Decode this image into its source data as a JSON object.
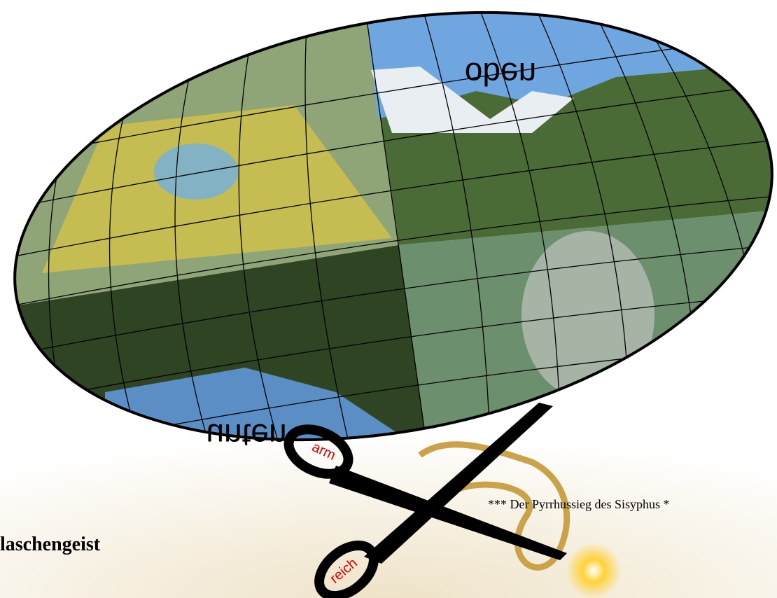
{
  "globe": {
    "top_label": "oben",
    "bottom_label": "unten"
  },
  "scissors": {
    "upper_handle": "arm",
    "lower_handle": "reich"
  },
  "motto": "*** Der Pyrrhussieg des Sisyphus *",
  "heading": "laschengeist"
}
